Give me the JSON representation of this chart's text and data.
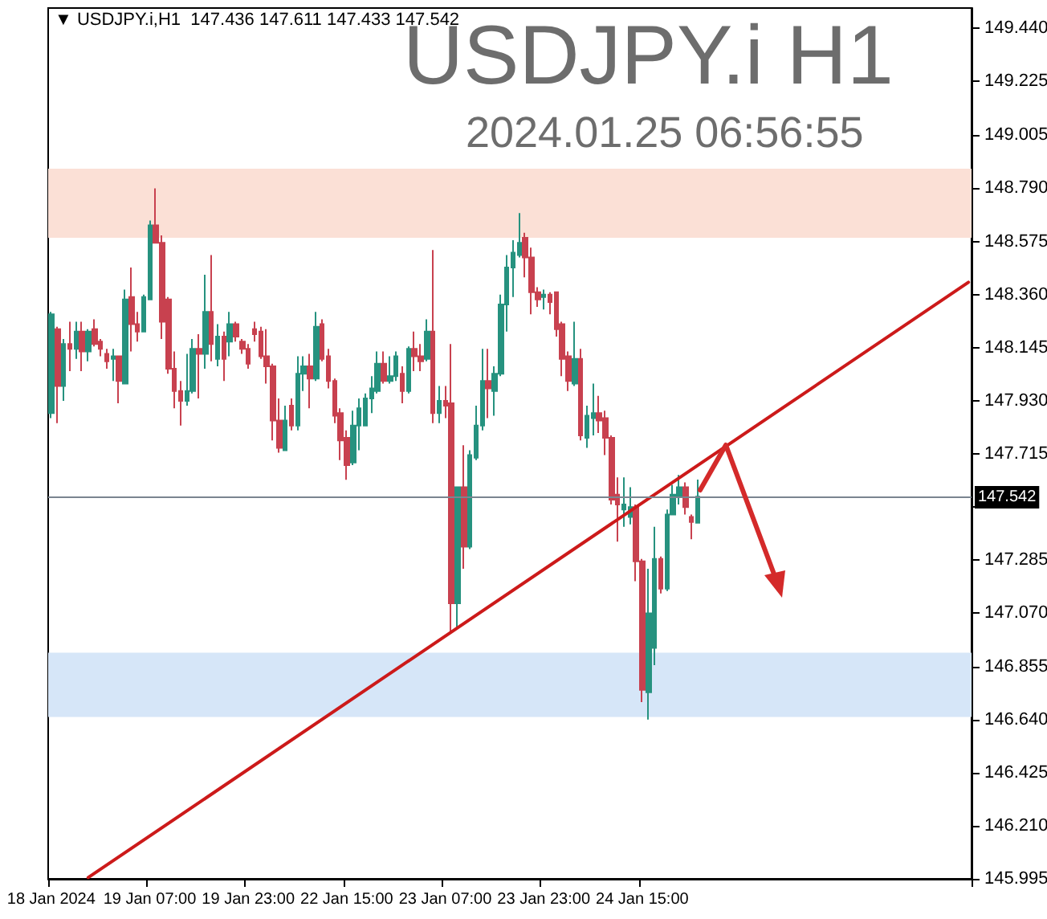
{
  "chart_data": {
    "type": "candlestick",
    "title": "USDJPY.i H1",
    "subtitle": "2024.01.25 06:56:55",
    "annotations": [
      "▼ USDJPY.i,H1  147.436 147.611 147.433 147.542"
    ],
    "categories": [
      "18 Jan 2024",
      null,
      null,
      null,
      null,
      null,
      null,
      null,
      null,
      null,
      null,
      null,
      null,
      null,
      null,
      null,
      "19 Jan 07:00",
      null,
      null,
      null,
      null,
      null,
      null,
      null,
      null,
      null,
      null,
      null,
      null,
      null,
      null,
      null,
      "19 Jan 23:00",
      null,
      null,
      null,
      null,
      null,
      null,
      null,
      null,
      null,
      null,
      null,
      null,
      null,
      null,
      null,
      "22 Jan 15:00",
      null,
      null,
      null,
      null,
      null,
      null,
      null,
      null,
      null,
      null,
      null,
      null,
      null,
      null,
      null,
      "23 Jan 07:00",
      null,
      null,
      null,
      null,
      null,
      null,
      null,
      null,
      null,
      null,
      null,
      null,
      null,
      null,
      null,
      "23 Jan 23:00",
      null,
      null,
      null,
      null,
      null,
      null,
      null,
      null,
      null,
      null,
      null,
      null,
      null,
      null,
      null,
      "24 Jan 15:00",
      null,
      null,
      null,
      null,
      null,
      null,
      null,
      null,
      null,
      null,
      null,
      null,
      null,
      null,
      null,
      null,
      null,
      null,
      null,
      null,
      null,
      null,
      null,
      null,
      null,
      null,
      null,
      null,
      null,
      null,
      null,
      null,
      null,
      null,
      null,
      null,
      null,
      null,
      null,
      null,
      null,
      null,
      null,
      null,
      null,
      null,
      null,
      null,
      null,
      null,
      null,
      null,
      null
    ],
    "ohlc": [
      [
        147.88,
        148.29,
        147.86,
        148.28
      ],
      [
        148.22,
        148.23,
        147.84,
        147.99
      ],
      [
        147.99,
        148.18,
        147.93,
        148.16
      ],
      [
        148.16,
        148.25,
        148.05,
        148.14
      ],
      [
        148.14,
        148.25,
        148.1,
        148.21
      ],
      [
        148.21,
        148.25,
        148.05,
        148.13
      ],
      [
        148.13,
        148.22,
        148.09,
        148.21
      ],
      [
        148.22,
        148.26,
        148.15,
        148.16
      ],
      [
        148.17,
        148.18,
        148.11,
        148.14
      ],
      [
        148.12,
        148.14,
        148.06,
        148.09
      ],
      [
        148.1,
        148.14,
        148.01,
        148.11
      ],
      [
        148.11,
        148.11,
        147.92,
        148.01
      ],
      [
        148.0,
        148.38,
        148.0,
        148.34
      ],
      [
        148.35,
        148.47,
        148.13,
        148.24
      ],
      [
        148.24,
        148.29,
        148.17,
        148.21
      ],
      [
        148.21,
        148.36,
        148.21,
        148.35
      ],
      [
        148.34,
        148.66,
        148.34,
        148.64
      ],
      [
        148.64,
        148.79,
        148.57,
        148.57
      ],
      [
        148.57,
        148.6,
        148.18,
        148.25
      ],
      [
        148.34,
        148.35,
        148.04,
        148.06
      ],
      [
        148.06,
        148.13,
        147.9,
        147.97
      ],
      [
        147.97,
        148.01,
        147.83,
        147.93
      ],
      [
        147.93,
        148.12,
        147.91,
        147.97
      ],
      [
        147.97,
        148.18,
        147.96,
        148.14
      ],
      [
        148.14,
        148.2,
        147.94,
        148.12
      ],
      [
        148.12,
        148.44,
        148.06,
        148.29
      ],
      [
        148.29,
        148.52,
        148.09,
        148.16
      ],
      [
        148.1,
        148.24,
        148.07,
        148.19
      ],
      [
        148.19,
        148.21,
        148.01,
        148.1
      ],
      [
        148.17,
        148.29,
        148.11,
        148.24
      ],
      [
        148.24,
        148.25,
        148.17,
        148.19
      ],
      [
        148.17,
        148.18,
        148.12,
        148.14
      ],
      [
        148.14,
        148.16,
        148.06,
        148.08
      ],
      [
        148.22,
        148.25,
        148.17,
        148.2
      ],
      [
        148.21,
        148.23,
        148.1,
        148.11
      ],
      [
        148.11,
        148.22,
        148.0,
        148.07
      ],
      [
        148.07,
        148.08,
        147.77,
        147.85
      ],
      [
        147.85,
        147.94,
        147.72,
        147.74
      ],
      [
        147.73,
        147.91,
        147.73,
        147.85
      ],
      [
        147.91,
        147.94,
        147.81,
        147.83
      ],
      [
        147.83,
        148.11,
        147.81,
        148.04
      ],
      [
        148.04,
        148.11,
        147.97,
        148.07
      ],
      [
        148.07,
        148.12,
        147.9,
        148.02
      ],
      [
        148.02,
        148.29,
        148.01,
        148.23
      ],
      [
        148.24,
        148.26,
        148.09,
        148.1
      ],
      [
        148.11,
        148.14,
        147.98,
        148.01
      ],
      [
        148.01,
        148.02,
        147.84,
        147.87
      ],
      [
        147.88,
        147.9,
        147.69,
        147.77
      ],
      [
        147.78,
        147.81,
        147.61,
        147.67
      ],
      [
        147.68,
        147.89,
        147.67,
        147.83
      ],
      [
        147.83,
        147.94,
        147.73,
        147.9
      ],
      [
        147.83,
        147.96,
        147.83,
        147.94
      ],
      [
        147.94,
        148.03,
        147.88,
        147.98
      ],
      [
        147.97,
        148.13,
        147.96,
        148.08
      ],
      [
        148.08,
        148.13,
        148.0,
        148.01
      ],
      [
        148.01,
        148.11,
        148.0,
        148.03
      ],
      [
        148.03,
        148.13,
        148.01,
        148.11
      ],
      [
        148.04,
        148.07,
        147.92,
        147.97
      ],
      [
        147.97,
        148.15,
        147.96,
        148.14
      ],
      [
        148.14,
        148.21,
        148.05,
        148.11
      ],
      [
        148.11,
        148.16,
        148.05,
        148.09
      ],
      [
        148.1,
        148.26,
        148.09,
        148.21
      ],
      [
        148.21,
        148.54,
        147.84,
        147.88
      ],
      [
        147.88,
        147.99,
        147.84,
        147.93
      ],
      [
        147.93,
        147.99,
        147.86,
        147.91
      ],
      [
        147.92,
        148.16,
        146.99,
        147.11
      ],
      [
        147.11,
        147.58,
        147.01,
        147.58
      ],
      [
        147.58,
        147.75,
        147.25,
        147.34
      ],
      [
        147.34,
        147.73,
        147.33,
        147.71
      ],
      [
        147.7,
        147.91,
        147.69,
        147.83
      ],
      [
        147.83,
        148.14,
        147.81,
        148.01
      ],
      [
        148.01,
        148.14,
        147.86,
        147.98
      ],
      [
        147.97,
        148.07,
        147.87,
        148.04
      ],
      [
        148.04,
        148.36,
        148.03,
        148.32
      ],
      [
        148.32,
        148.52,
        148.21,
        148.47
      ],
      [
        148.47,
        148.58,
        148.35,
        148.53
      ],
      [
        148.52,
        148.69,
        148.51,
        148.57
      ],
      [
        148.59,
        148.61,
        148.43,
        148.51
      ],
      [
        148.51,
        148.55,
        148.28,
        148.37
      ],
      [
        148.37,
        148.39,
        148.31,
        148.34
      ],
      [
        148.35,
        148.38,
        148.3,
        148.36
      ],
      [
        148.36,
        148.37,
        148.28,
        148.33
      ],
      [
        148.37,
        148.37,
        148.19,
        148.22
      ],
      [
        148.24,
        148.25,
        148.03,
        148.1
      ],
      [
        148.11,
        148.13,
        147.97,
        148.01
      ],
      [
        148.0,
        148.25,
        147.99,
        148.1
      ],
      [
        148.1,
        148.14,
        147.77,
        147.79
      ],
      [
        147.78,
        147.91,
        147.74,
        147.87
      ],
      [
        147.86,
        148.0,
        147.79,
        147.88
      ],
      [
        147.88,
        147.95,
        147.8,
        147.85
      ],
      [
        147.86,
        147.89,
        147.71,
        147.78
      ],
      [
        147.78,
        147.79,
        147.51,
        147.53
      ],
      [
        147.55,
        147.62,
        147.36,
        147.51
      ],
      [
        147.49,
        147.62,
        147.42,
        147.51
      ],
      [
        147.46,
        147.58,
        147.43,
        147.5
      ],
      [
        147.5,
        147.51,
        147.2,
        147.28
      ],
      [
        147.28,
        147.29,
        146.71,
        146.76
      ],
      [
        146.75,
        147.25,
        146.64,
        147.07
      ],
      [
        146.93,
        147.42,
        146.86,
        147.29
      ],
      [
        147.29,
        147.3,
        147.15,
        147.17
      ],
      [
        147.17,
        147.49,
        147.16,
        147.47
      ],
      [
        147.47,
        147.59,
        147.47,
        147.55
      ],
      [
        147.54,
        147.63,
        147.51,
        147.58
      ],
      [
        147.58,
        147.6,
        147.47,
        147.5
      ],
      [
        147.46,
        147.47,
        147.37,
        147.44
      ],
      [
        147.436,
        147.611,
        147.433,
        147.542
      ],
      null,
      null,
      null,
      null,
      null,
      null,
      null,
      null,
      null,
      null,
      null,
      null,
      null,
      null,
      null,
      null,
      null,
      null,
      null,
      null,
      null,
      null,
      null,
      null,
      null,
      null,
      null,
      null,
      null,
      null,
      null,
      null,
      null,
      null,
      null,
      null,
      null,
      null,
      null,
      null,
      null,
      null,
      null,
      null
    ],
    "colors": [
      "#26927f",
      "#c8414f",
      "#26927f",
      "#c8414f",
      "#26927f",
      "#c8414f",
      "#26927f",
      "#c8414f",
      "#c8414f",
      "#c8414f",
      "#26927f",
      "#c8414f",
      "#26927f",
      "#c8414f",
      "#c8414f",
      "#26927f",
      "#26927f",
      "#c8414f",
      "#c8414f",
      "#c8414f",
      "#c8414f",
      "#c8414f",
      "#26927f",
      "#26927f",
      "#c8414f",
      "#26927f",
      "#c8414f",
      "#26927f",
      "#c8414f",
      "#26927f",
      "#c8414f",
      "#c8414f",
      "#c8414f",
      "#c8414f",
      "#c8414f",
      "#c8414f",
      "#c8414f",
      "#c8414f",
      "#26927f",
      "#c8414f",
      "#26927f",
      "#26927f",
      "#c8414f",
      "#26927f",
      "#c8414f",
      "#c8414f",
      "#c8414f",
      "#c8414f",
      "#c8414f",
      "#26927f",
      "#26927f",
      "#26927f",
      "#26927f",
      "#26927f",
      "#c8414f",
      "#26927f",
      "#26927f",
      "#c8414f",
      "#26927f",
      "#c8414f",
      "#c8414f",
      "#26927f",
      "#c8414f",
      "#26927f",
      "#c8414f",
      "#c8414f",
      "#26927f",
      "#c8414f",
      "#26927f",
      "#26927f",
      "#26927f",
      "#c8414f",
      "#26927f",
      "#26927f",
      "#26927f",
      "#26927f",
      "#26927f",
      "#c8414f",
      "#c8414f",
      "#c8414f",
      "#26927f",
      "#c8414f",
      "#c8414f",
      "#c8414f",
      "#c8414f",
      "#26927f",
      "#c8414f",
      "#26927f",
      "#26927f",
      "#c8414f",
      "#c8414f",
      "#c8414f",
      "#c8414f",
      "#26927f",
      "#26927f",
      "#c8414f",
      "#c8414f",
      "#26927f",
      "#26927f",
      "#c8414f",
      "#26927f",
      "#26927f",
      "#26927f",
      "#c8414f",
      "#c8414f",
      "#26927f",
      null,
      null,
      null,
      null,
      null,
      null,
      null,
      null,
      null,
      null,
      null,
      null,
      null,
      null,
      null,
      null,
      null,
      null,
      null,
      null,
      null,
      null,
      null,
      null,
      null,
      null,
      null,
      null,
      null,
      null,
      null,
      null,
      null,
      null,
      null,
      null,
      null,
      null,
      null,
      null,
      null,
      null,
      null,
      null
    ],
    "series": [
      {
        "type": "line",
        "color": "#cc1a1a",
        "values": [
          null,
          null,
          null,
          null,
          null,
          null,
          146.0,
          null,
          null,
          null,
          null,
          null,
          null,
          null,
          null,
          null,
          null,
          null,
          null,
          null,
          null,
          null,
          null,
          null,
          null,
          null,
          null,
          null,
          null,
          null,
          null,
          null,
          null,
          null,
          null,
          null,
          null,
          null,
          null,
          null,
          null,
          null,
          null,
          null,
          null,
          null,
          null,
          null,
          null,
          null,
          null,
          null,
          null,
          null,
          null,
          null,
          null,
          null,
          null,
          null,
          null,
          null,
          null,
          null,
          null,
          null,
          null,
          null,
          null,
          null,
          null,
          null,
          null,
          null,
          null,
          null,
          null,
          null,
          null,
          null,
          null,
          null,
          null,
          null,
          null,
          null,
          null,
          null,
          null,
          null,
          null,
          null,
          null,
          null,
          null,
          null,
          null,
          null,
          null,
          null,
          null,
          null,
          null,
          null,
          null,
          null,
          null,
          null,
          null,
          null,
          null,
          null,
          null,
          null,
          null,
          null,
          null,
          null,
          null,
          null,
          null,
          null,
          null,
          null,
          null,
          null,
          null,
          null,
          null,
          null,
          null,
          null,
          null,
          null,
          null,
          null,
          null,
          null,
          null,
          null,
          null,
          null,
          null,
          null,
          null,
          null,
          null,
          null,
          null,
          148.41
        ]
      }
    ],
    "marker": "none",
    "ylim": [
      145.995,
      149.52
    ],
    "yticks": [
      145.995,
      {
        "value": 146.21,
        "label": "146.210"
      },
      146.425,
      {
        "value": 146.64,
        "label": "146.640"
      },
      146.855,
      {
        "value": 147.07,
        "label": "147.070"
      },
      147.285,
      {
        "value": 147.5,
        "label": null
      },
      147.715,
      {
        "value": 147.93,
        "label": "147.930"
      },
      148.145,
      {
        "value": 148.36,
        "label": "148.360"
      },
      148.575,
      {
        "value": 148.79,
        "label": "148.790"
      },
      149.005,
      149.225,
      {
        "value": 149.44,
        "label": "149.440"
      }
    ],
    "ref_lines": [
      {
        "axis": "y",
        "value": 147.542,
        "label": "147.542",
        "color": "#7a8590"
      }
    ],
    "bands": [
      {
        "axis": "y",
        "from": 148.59,
        "to": 148.87,
        "color": "#fbe0d6"
      },
      {
        "axis": "y",
        "from": 146.65,
        "to": 146.91,
        "color": "#d6e6f8"
      }
    ]
  }
}
